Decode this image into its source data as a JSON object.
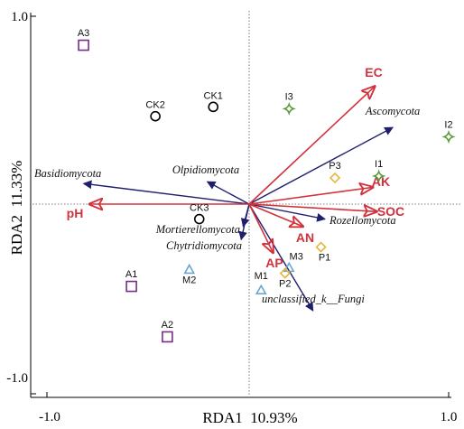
{
  "chart_data": {
    "type": "scatter",
    "subtype": "rda-biplot",
    "xlabel": "RDA1  10.93%",
    "ylabel": "RDA2  11.33%",
    "xlim": [
      -1.0,
      1.0
    ],
    "ylim": [
      -1.0,
      1.0
    ],
    "xticks": [
      "-1.0",
      "1.0"
    ],
    "yticks": [
      "1.0",
      "-1.0"
    ],
    "reference_lines": "dotted at x=0 and y=0",
    "colors": {
      "species_arrow": "#1f1f6e",
      "env_arrow": "#d2323c",
      "CK": "#000000",
      "A": "#7a2a8a",
      "M": "#6aa7cf",
      "P": "#e8b43a",
      "I": "#5a9a3c"
    },
    "species": [
      {
        "label": "Ascomycota",
        "x": 0.72,
        "y": 0.41
      },
      {
        "label": "Basidiomycota",
        "x": -0.83,
        "y": 0.11
      },
      {
        "label": "Olpidiomycota",
        "x": -0.21,
        "y": 0.12
      },
      {
        "label": "Mortierellomycota",
        "x": -0.03,
        "y": -0.12
      },
      {
        "label": "Chytridiomycota",
        "x": -0.04,
        "y": -0.19
      },
      {
        "label": "Rozellomycota",
        "x": 0.38,
        "y": -0.08
      },
      {
        "label": "unclassified_k__Fungi",
        "x": 0.32,
        "y": -0.57
      }
    ],
    "environment": [
      {
        "label": "EC",
        "x": 0.63,
        "y": 0.63
      },
      {
        "label": "AK",
        "x": 0.62,
        "y": 0.09
      },
      {
        "label": "SOC",
        "x": 0.64,
        "y": -0.04
      },
      {
        "label": "pH",
        "x": -0.8,
        "y": 0.0
      },
      {
        "label": "AN",
        "x": 0.27,
        "y": -0.12
      },
      {
        "label": "AP",
        "x": 0.12,
        "y": -0.26
      }
    ],
    "sites": [
      {
        "label": "CK1",
        "group": "CK",
        "shape": "circle",
        "x": -0.18,
        "y": 0.52
      },
      {
        "label": "CK2",
        "group": "CK",
        "shape": "circle",
        "x": -0.47,
        "y": 0.47
      },
      {
        "label": "CK3",
        "group": "CK",
        "shape": "circle",
        "x": -0.25,
        "y": -0.08
      },
      {
        "label": "A1",
        "group": "A",
        "shape": "square",
        "x": -0.59,
        "y": -0.44
      },
      {
        "label": "A2",
        "group": "A",
        "shape": "square",
        "x": -0.41,
        "y": -0.71
      },
      {
        "label": "A3",
        "group": "A",
        "shape": "square",
        "x": -0.83,
        "y": 0.85
      },
      {
        "label": "M1",
        "group": "M",
        "shape": "triangle",
        "x": 0.06,
        "y": -0.46
      },
      {
        "label": "M2",
        "group": "M",
        "shape": "triangle",
        "x": -0.3,
        "y": -0.35
      },
      {
        "label": "M3",
        "group": "M",
        "shape": "triangle",
        "x": 0.2,
        "y": -0.34
      },
      {
        "label": "P1",
        "group": "P",
        "shape": "diamond",
        "x": 0.36,
        "y": -0.23
      },
      {
        "label": "P2",
        "group": "P",
        "shape": "diamond",
        "x": 0.18,
        "y": -0.37
      },
      {
        "label": "P3",
        "group": "P",
        "shape": "diamond",
        "x": 0.43,
        "y": 0.14
      },
      {
        "label": "I1",
        "group": "I",
        "shape": "star",
        "x": 0.65,
        "y": 0.15
      },
      {
        "label": "I2",
        "group": "I",
        "shape": "star",
        "x": 1.0,
        "y": 0.36
      },
      {
        "label": "I3",
        "group": "I",
        "shape": "star",
        "x": 0.2,
        "y": 0.51
      }
    ]
  }
}
